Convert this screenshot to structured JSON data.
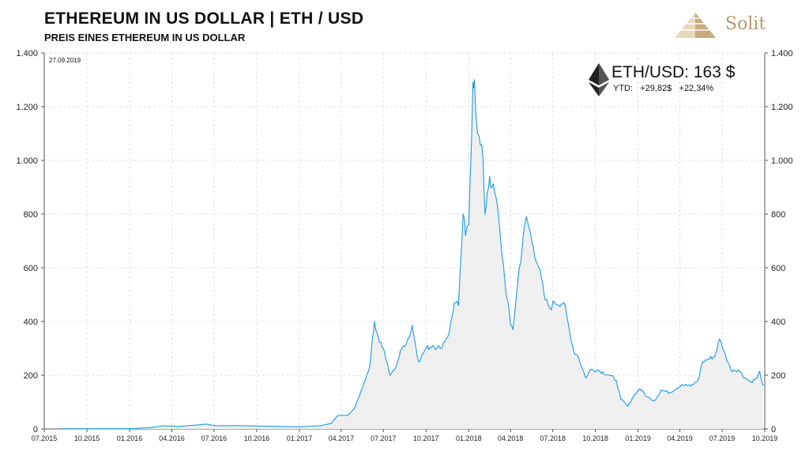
{
  "header": {
    "title": "ETHEREUM IN US DOLLAR | ETH / USD",
    "subtitle": "PREIS EINES ETHEREUM IN US DOLLAR",
    "brand": "Solit",
    "date": "27.09.2019"
  },
  "info_box": {
    "price_label": "ETH/USD: 163 $",
    "ytd_label": "YTD:",
    "ytd_abs": "+29,82$",
    "ytd_pct": "+22,34%"
  },
  "colors": {
    "line": "#1e9be0",
    "fill": "#efefef",
    "grid": "#d9d9d9",
    "brand": "#b59a6d"
  },
  "chart_data": {
    "type": "area",
    "title": "ETHEREUM IN US DOLLAR | ETH / USD",
    "subtitle": "PREIS EINES ETHEREUM IN US DOLLAR",
    "ylim": [
      0,
      1400
    ],
    "yticks": [
      0,
      200,
      400,
      600,
      800,
      1000,
      1200,
      1400
    ],
    "ytick_labels": [
      "0",
      "200",
      "400",
      "600",
      "800",
      "1.000",
      "1.200",
      "1.400"
    ],
    "xlim": [
      "2015-07-01",
      "2019-10-01"
    ],
    "xticks": [
      "2015-07-01",
      "2015-10-01",
      "2016-01-01",
      "2016-04-01",
      "2016-07-01",
      "2016-10-01",
      "2017-01-01",
      "2017-04-01",
      "2017-07-01",
      "2017-10-01",
      "2018-01-01",
      "2018-04-01",
      "2018-07-01",
      "2018-10-01",
      "2019-01-01",
      "2019-04-01",
      "2019-07-01",
      "2019-10-01"
    ],
    "xtick_labels": [
      "07.2015",
      "10.2015",
      "01.2016",
      "04.2016",
      "07.2016",
      "10.2016",
      "01.2017",
      "04.2017",
      "07.2017",
      "10.2017",
      "01.2018",
      "04.2018",
      "07.2018",
      "10.2018",
      "01.2019",
      "04.2019",
      "07.2019",
      "10.2019"
    ],
    "grid": true,
    "series": [
      {
        "values": [
          [
            "2015-08-08",
            1
          ],
          [
            "2015-10-01",
            0.7
          ],
          [
            "2016-01-01",
            1
          ],
          [
            "2016-02-15",
            5
          ],
          [
            "2016-03-15",
            12
          ],
          [
            "2016-04-15",
            9
          ],
          [
            "2016-06-15",
            18
          ],
          [
            "2016-07-01",
            12
          ],
          [
            "2016-09-01",
            12
          ],
          [
            "2016-11-01",
            10
          ],
          [
            "2017-01-01",
            8
          ],
          [
            "2017-02-15",
            12
          ],
          [
            "2017-03-10",
            20
          ],
          [
            "2017-03-25",
            50
          ],
          [
            "2017-04-15",
            50
          ],
          [
            "2017-05-01",
            80
          ],
          [
            "2017-05-20",
            170
          ],
          [
            "2017-06-01",
            230
          ],
          [
            "2017-06-12",
            400
          ],
          [
            "2017-06-20",
            340
          ],
          [
            "2017-07-01",
            300
          ],
          [
            "2017-07-15",
            200
          ],
          [
            "2017-07-25",
            220
          ],
          [
            "2017-08-10",
            300
          ],
          [
            "2017-08-25",
            340
          ],
          [
            "2017-09-01",
            385
          ],
          [
            "2017-09-15",
            250
          ],
          [
            "2017-10-01",
            300
          ],
          [
            "2017-10-15",
            310
          ],
          [
            "2017-11-01",
            300
          ],
          [
            "2017-11-20",
            360
          ],
          [
            "2017-12-01",
            470
          ],
          [
            "2017-12-10",
            460
          ],
          [
            "2017-12-20",
            800
          ],
          [
            "2017-12-25",
            720
          ],
          [
            "2018-01-01",
            760
          ],
          [
            "2018-01-10",
            1290
          ],
          [
            "2018-01-13",
            1300
          ],
          [
            "2018-01-20",
            1100
          ],
          [
            "2018-02-01",
            1000
          ],
          [
            "2018-02-05",
            800
          ],
          [
            "2018-02-10",
            880
          ],
          [
            "2018-02-15",
            940
          ],
          [
            "2018-02-20",
            900
          ],
          [
            "2018-03-01",
            860
          ],
          [
            "2018-03-10",
            720
          ],
          [
            "2018-03-20",
            550
          ],
          [
            "2018-04-01",
            390
          ],
          [
            "2018-04-06",
            370
          ],
          [
            "2018-04-20",
            600
          ],
          [
            "2018-05-05",
            790
          ],
          [
            "2018-05-20",
            680
          ],
          [
            "2018-06-01",
            600
          ],
          [
            "2018-06-15",
            480
          ],
          [
            "2018-06-25",
            450
          ],
          [
            "2018-07-05",
            470
          ],
          [
            "2018-07-25",
            470
          ],
          [
            "2018-08-15",
            290
          ],
          [
            "2018-08-25",
            270
          ],
          [
            "2018-09-10",
            190
          ],
          [
            "2018-09-20",
            220
          ],
          [
            "2018-10-05",
            220
          ],
          [
            "2018-11-01",
            200
          ],
          [
            "2018-11-15",
            180
          ],
          [
            "2018-11-25",
            110
          ],
          [
            "2018-12-10",
            85
          ],
          [
            "2018-12-25",
            130
          ],
          [
            "2019-01-05",
            150
          ],
          [
            "2019-01-20",
            120
          ],
          [
            "2019-02-05",
            105
          ],
          [
            "2019-02-20",
            145
          ],
          [
            "2019-03-10",
            135
          ],
          [
            "2019-04-05",
            165
          ],
          [
            "2019-04-25",
            160
          ],
          [
            "2019-05-10",
            180
          ],
          [
            "2019-05-20",
            250
          ],
          [
            "2019-06-01",
            260
          ],
          [
            "2019-06-15",
            270
          ],
          [
            "2019-06-26",
            335
          ],
          [
            "2019-07-05",
            290
          ],
          [
            "2019-07-20",
            220
          ],
          [
            "2019-08-05",
            220
          ],
          [
            "2019-08-20",
            190
          ],
          [
            "2019-09-01",
            175
          ],
          [
            "2019-09-15",
            190
          ],
          [
            "2019-09-20",
            215
          ],
          [
            "2019-09-27",
            163
          ]
        ]
      }
    ]
  }
}
